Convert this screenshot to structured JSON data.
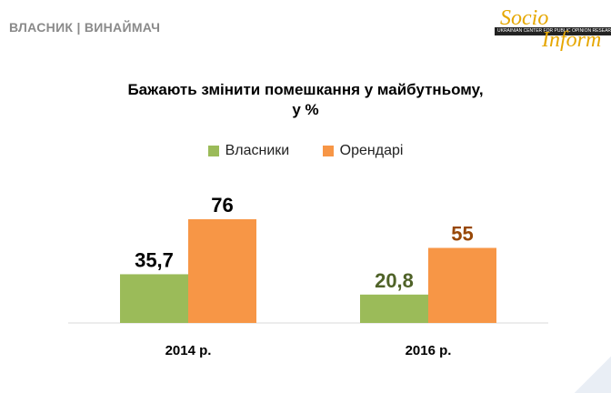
{
  "header": {
    "label": "ВЛАСНИК | ВИНАЙМАЧ"
  },
  "logo": {
    "line1": "Socio",
    "line2": "Inform",
    "tagline": "UKRAINIAN CENTER FOR PUBLIC OPINION RESEARCH"
  },
  "colors": {
    "owners": "#9bbb59",
    "renters": "#f79646",
    "label_dark": "#000000",
    "label_owner_2016": "#4f6228",
    "label_renter_2016": "#984807",
    "axis": "#d9d9d9"
  },
  "chart_data": {
    "type": "bar",
    "title": "Бажають змінити помешкання у майбутньому,",
    "subtitle": "у %",
    "categories": [
      "2014 р.",
      "2016 р."
    ],
    "series": [
      {
        "name": "Власники",
        "values": [
          35.7,
          20.8
        ],
        "labels": [
          "35,7",
          "20,8"
        ]
      },
      {
        "name": "Орендарі",
        "values": [
          76,
          55
        ],
        "labels": [
          "76",
          "55"
        ]
      }
    ],
    "ylim": [
      0,
      100
    ],
    "legend": "top",
    "xlabel": "",
    "ylabel": ""
  }
}
